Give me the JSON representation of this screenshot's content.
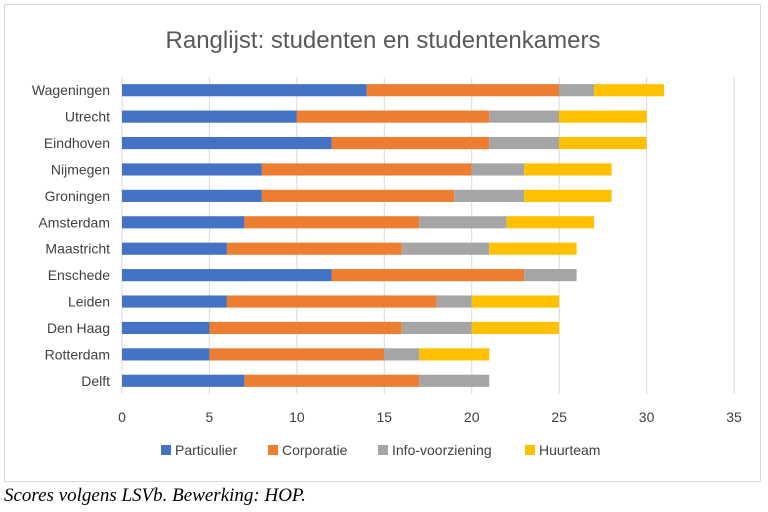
{
  "chart_data": {
    "type": "bar",
    "orientation": "horizontal",
    "stacked": true,
    "title": "Ranglijst: studenten en studentenkamers",
    "categories": [
      "Wageningen",
      "Utrecht",
      "Eindhoven",
      "Nijmegen",
      "Groningen",
      "Amsterdam",
      "Maastricht",
      "Enschede",
      "Leiden",
      "Den Haag",
      "Rotterdam",
      "Delft"
    ],
    "series": [
      {
        "name": "Particulier",
        "color": "#4472c4",
        "values": [
          14,
          10,
          12,
          8,
          8,
          7,
          6,
          12,
          6,
          5,
          5,
          7
        ]
      },
      {
        "name": "Corporatie",
        "color": "#ed7d31",
        "values": [
          11,
          11,
          9,
          12,
          11,
          10,
          10,
          11,
          12,
          11,
          10,
          10
        ]
      },
      {
        "name": "Info-voorziening",
        "color": "#a5a5a5",
        "values": [
          2,
          4,
          4,
          3,
          4,
          5,
          5,
          3,
          2,
          4,
          2,
          4
        ]
      },
      {
        "name": "Huurteam",
        "color": "#ffc000",
        "values": [
          4,
          5,
          5,
          5,
          5,
          5,
          5,
          0,
          5,
          5,
          4,
          0
        ]
      }
    ],
    "xlim": [
      0,
      35
    ],
    "xticks": [
      0,
      5,
      10,
      15,
      20,
      25,
      30,
      35
    ],
    "grid": "vertical",
    "legend": "bottom",
    "xlabel": "",
    "ylabel": ""
  },
  "caption": "Scores volgens LSVb. Bewerking: HOP."
}
